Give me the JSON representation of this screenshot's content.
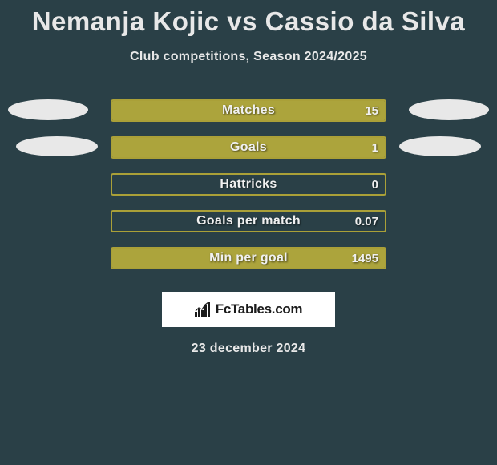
{
  "title": "Nemanja Kojic vs Cassio da Silva",
  "subtitle": "Club competitions, Season 2024/2025",
  "bar_border_color": "#aaa038",
  "bar_fill_color": "#aca43c",
  "background_color": "#2a4047",
  "ellipse_color": "#e8e8e8",
  "rows": [
    {
      "label": "Matches",
      "value": "15",
      "fill_pct": 100,
      "left_ellipse": true,
      "right_ellipse": true,
      "ellipse_style": "wide"
    },
    {
      "label": "Goals",
      "value": "1",
      "fill_pct": 100,
      "left_ellipse": true,
      "right_ellipse": true,
      "ellipse_style": "narrow"
    },
    {
      "label": "Hattricks",
      "value": "0",
      "fill_pct": 0,
      "left_ellipse": false,
      "right_ellipse": false
    },
    {
      "label": "Goals per match",
      "value": "0.07",
      "fill_pct": 0,
      "left_ellipse": false,
      "right_ellipse": false
    },
    {
      "label": "Min per goal",
      "value": "1495",
      "fill_pct": 100,
      "left_ellipse": false,
      "right_ellipse": false
    }
  ],
  "logo_text": "FcTables.com",
  "date": "23 december 2024"
}
